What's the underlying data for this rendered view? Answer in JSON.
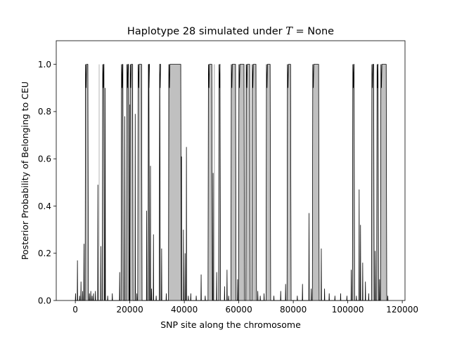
{
  "chart_data": {
    "type": "area",
    "title": "Haplotype 28 simulated under T = None",
    "title_parts": {
      "prefix": "Haplotype 28 simulated under ",
      "var": "T",
      "suffix": " =  None"
    },
    "xlabel": "SNP site along the chromosome",
    "ylabel": "Posterior Probability of Belonging to CEU",
    "xlim": [
      -7000,
      121000
    ],
    "ylim": [
      0.0,
      1.1
    ],
    "xticks": [
      0,
      20000,
      40000,
      60000,
      80000,
      100000,
      120000
    ],
    "xtick_labels": [
      "0",
      "20000",
      "40000",
      "60000",
      "80000",
      "100000",
      "120000"
    ],
    "yticks": [
      0.0,
      0.2,
      0.4,
      0.6,
      0.8,
      1.0
    ],
    "ytick_labels": [
      "0.0",
      "0.2",
      "0.4",
      "0.6",
      "0.8",
      "1.0"
    ],
    "grid": false,
    "legend": "none",
    "colors": {
      "true_ancestry_fill": "#c0c0c0",
      "posterior_line": "#000000",
      "axes": "#000000"
    },
    "true_ceu_segments": [
      [
        3600,
        4700
      ],
      [
        8600,
        8900
      ],
      [
        9900,
        10600
      ],
      [
        16900,
        17700
      ],
      [
        18800,
        19600
      ],
      [
        20100,
        21200
      ],
      [
        23100,
        24500
      ],
      [
        26600,
        27100
      ],
      [
        30800,
        31100
      ],
      [
        34100,
        38800
      ],
      [
        48800,
        50200
      ],
      [
        50800,
        51200
      ],
      [
        52700,
        53200
      ],
      [
        57200,
        58900
      ],
      [
        60000,
        62000
      ],
      [
        62500,
        64100
      ],
      [
        64900,
        66400
      ],
      [
        70100,
        71600
      ],
      [
        77800,
        79100
      ],
      [
        87100,
        89400
      ],
      [
        101800,
        102400
      ],
      [
        108800,
        109600
      ],
      [
        110700,
        111200
      ],
      [
        112100,
        114200
      ]
    ],
    "posterior_high_segments": [
      [
        3600,
        4800
      ],
      [
        9900,
        10700
      ],
      [
        16800,
        17600
      ],
      [
        18800,
        19700
      ],
      [
        20000,
        21200
      ],
      [
        22900,
        24500
      ],
      [
        26700,
        27200
      ],
      [
        30800,
        31200
      ],
      [
        34200,
        38900
      ],
      [
        48700,
        50300
      ],
      [
        52600,
        53300
      ],
      [
        57100,
        59000
      ],
      [
        59900,
        62100
      ],
      [
        62600,
        64200
      ],
      [
        64800,
        66500
      ],
      [
        70000,
        71700
      ],
      [
        77700,
        79200
      ],
      [
        87000,
        89500
      ],
      [
        101700,
        102500
      ],
      [
        108700,
        109700
      ],
      [
        110600,
        111300
      ],
      [
        112000,
        114300
      ]
    ],
    "posterior_spikes": [
      [
        0,
        0.03
      ],
      [
        700,
        0.17
      ],
      [
        1500,
        0.02
      ],
      [
        2000,
        0.08
      ],
      [
        2600,
        0.04
      ],
      [
        3100,
        0.24
      ],
      [
        5100,
        0.03
      ],
      [
        5600,
        0.04
      ],
      [
        6100,
        0.02
      ],
      [
        6600,
        0.03
      ],
      [
        7300,
        0.04
      ],
      [
        8200,
        0.49
      ],
      [
        9300,
        0.23
      ],
      [
        10900,
        0.9
      ],
      [
        11800,
        0.02
      ],
      [
        13500,
        0.03
      ],
      [
        16200,
        0.12
      ],
      [
        18100,
        0.78
      ],
      [
        19900,
        0.83
      ],
      [
        21900,
        0.79
      ],
      [
        22500,
        0.03
      ],
      [
        26100,
        0.38
      ],
      [
        27500,
        0.57
      ],
      [
        27900,
        0.05
      ],
      [
        28600,
        0.28
      ],
      [
        29600,
        0.02
      ],
      [
        31600,
        0.22
      ],
      [
        33300,
        0.03
      ],
      [
        38900,
        0.61
      ],
      [
        39600,
        0.3
      ],
      [
        40200,
        0.2
      ],
      [
        40700,
        0.65
      ],
      [
        41400,
        0.02
      ],
      [
        42300,
        0.03
      ],
      [
        44300,
        0.02
      ],
      [
        46100,
        0.11
      ],
      [
        47600,
        0.02
      ],
      [
        50500,
        0.54
      ],
      [
        51800,
        0.12
      ],
      [
        54700,
        0.06
      ],
      [
        55600,
        0.13
      ],
      [
        56200,
        0.02
      ],
      [
        59500,
        0.09
      ],
      [
        66900,
        0.04
      ],
      [
        67800,
        0.02
      ],
      [
        69200,
        0.03
      ],
      [
        72800,
        0.02
      ],
      [
        75300,
        0.04
      ],
      [
        77100,
        0.07
      ],
      [
        81400,
        0.02
      ],
      [
        83300,
        0.07
      ],
      [
        85700,
        0.37
      ],
      [
        86500,
        0.05
      ],
      [
        90200,
        0.22
      ],
      [
        91400,
        0.05
      ],
      [
        93100,
        0.03
      ],
      [
        95200,
        0.02
      ],
      [
        97300,
        0.03
      ],
      [
        99600,
        0.02
      ],
      [
        101200,
        0.13
      ],
      [
        103100,
        0.02
      ],
      [
        104100,
        0.47
      ],
      [
        104600,
        0.32
      ],
      [
        105400,
        0.16
      ],
      [
        106400,
        0.08
      ],
      [
        107600,
        0.03
      ],
      [
        110000,
        0.21
      ],
      [
        111600,
        0.09
      ],
      [
        114600,
        0.02
      ]
    ]
  }
}
